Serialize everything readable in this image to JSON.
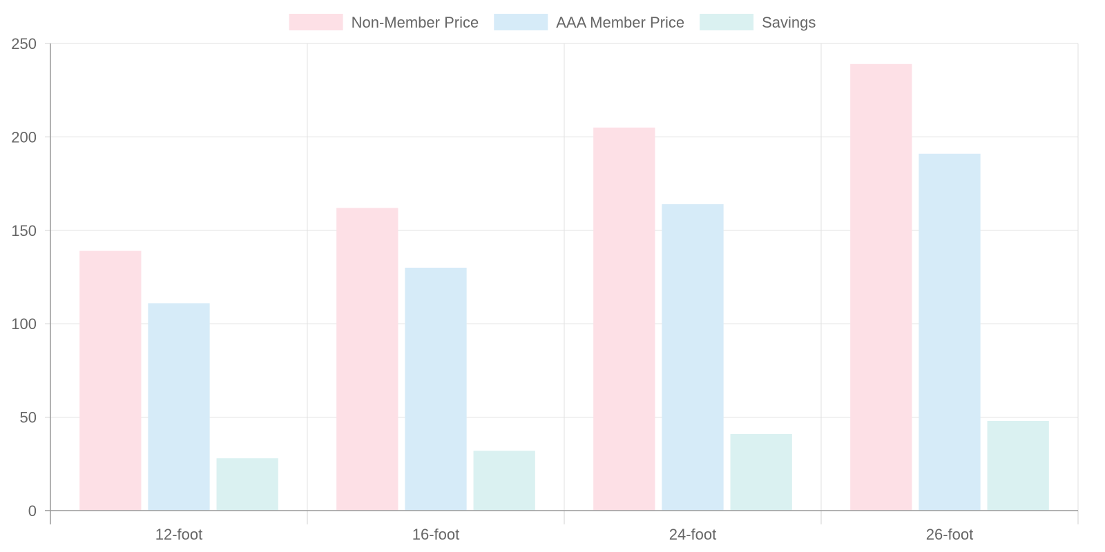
{
  "chart_data": {
    "type": "bar",
    "categories": [
      "12-foot",
      "16-foot",
      "24-foot",
      "26-foot"
    ],
    "series": [
      {
        "name": "Non-Member Price",
        "values": [
          139,
          162,
          205,
          239
        ],
        "color": "#fde0e6"
      },
      {
        "name": "AAA Member Price",
        "values": [
          111,
          130,
          164,
          191
        ],
        "color": "#d6ebf8"
      },
      {
        "name": "Savings",
        "values": [
          28,
          32,
          41,
          48
        ],
        "color": "#daf1f1"
      }
    ],
    "y_ticks": [
      "0",
      "50",
      "100",
      "150",
      "200",
      "250"
    ],
    "ylim": [
      0,
      250
    ],
    "grid": true,
    "legend_position": "top-center",
    "title": "",
    "xlabel": "",
    "ylabel": ""
  }
}
